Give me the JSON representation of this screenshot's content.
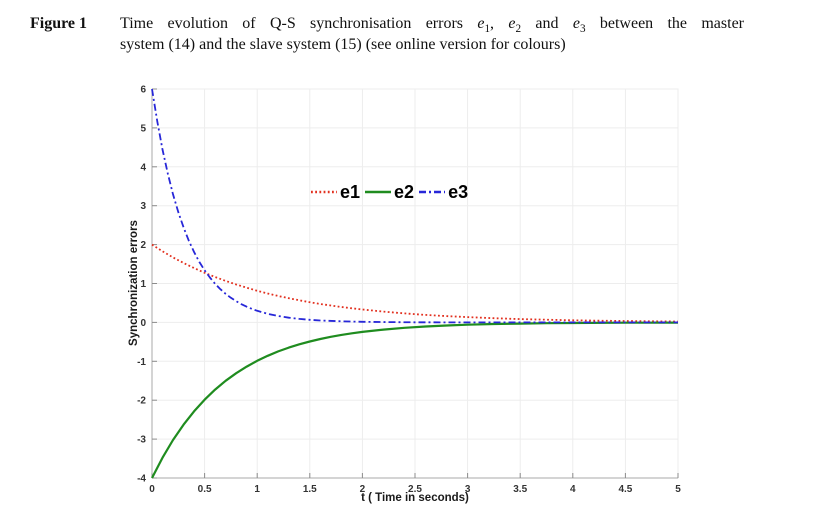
{
  "caption": {
    "label": "Figure 1",
    "line1_pre": "Time evolution of Q-S synchronisation errors",
    "terms": [
      {
        "base": "e",
        "sub": "1"
      },
      {
        "base": "e",
        "sub": "2"
      },
      {
        "base": "e",
        "sub": "3"
      }
    ],
    "sep1": ", ",
    "sep2": " and ",
    "line1_post": "between the master",
    "line2": "system (14) and the slave system (15) (see online version for colours)"
  },
  "figure": {
    "background": "#ffffff",
    "grid_color": "#ededed",
    "spine_color": "#a9a9a9",
    "tick_color": "#8c8c8c",
    "tick_label_color": "#333333"
  },
  "chart_data": {
    "type": "line",
    "title": "",
    "xlabel": "t ( Time in seconds)",
    "ylabel": "Synchronization errors",
    "xlim": [
      0,
      5
    ],
    "ylim": [
      -4,
      6
    ],
    "xticks": [
      0,
      0.5,
      1,
      1.5,
      2,
      2.5,
      3,
      3.5,
      4,
      4.5,
      5
    ],
    "yticks": [
      -4,
      -3,
      -2,
      -1,
      0,
      1,
      2,
      3,
      4,
      5,
      6
    ],
    "grid": true,
    "legend_position": "inside-top-center",
    "series": [
      {
        "name": "e1",
        "color": "#e2301f",
        "style": "dotted",
        "dash": "1.8 2.4",
        "width": 1.8,
        "description": "starts at 2, decays exponentially to 0",
        "points": [
          [
            0,
            2
          ],
          [
            0.1,
            1.828
          ],
          [
            0.2,
            1.671
          ],
          [
            0.3,
            1.527
          ],
          [
            0.4,
            1.396
          ],
          [
            0.5,
            1.276
          ],
          [
            0.6,
            1.166
          ],
          [
            0.7,
            1.066
          ],
          [
            0.8,
            0.975
          ],
          [
            0.9,
            0.891
          ],
          [
            1,
            0.813
          ],
          [
            1.1,
            0.744
          ],
          [
            1.2,
            0.679
          ],
          [
            1.3,
            0.621
          ],
          [
            1.4,
            0.568
          ],
          [
            1.5,
            0.519
          ],
          [
            1.6,
            0.474
          ],
          [
            1.7,
            0.434
          ],
          [
            1.8,
            0.396
          ],
          [
            1.9,
            0.362
          ],
          [
            2,
            0.331
          ],
          [
            2.2,
            0.277
          ],
          [
            2.4,
            0.231
          ],
          [
            2.6,
            0.193
          ],
          [
            2.8,
            0.162
          ],
          [
            3,
            0.135
          ],
          [
            3.25,
            0.107
          ],
          [
            3.5,
            0.086
          ],
          [
            3.75,
            0.069
          ],
          [
            4,
            0.055
          ],
          [
            4.25,
            0.044
          ],
          [
            4.5,
            0.035
          ],
          [
            4.75,
            0.028
          ],
          [
            5,
            0.022
          ]
        ]
      },
      {
        "name": "e2",
        "color": "#1f8c1f",
        "style": "solid",
        "dash": "",
        "width": 2.2,
        "description": "starts at -4, rises exponentially to 0",
        "points": [
          [
            0,
            -4
          ],
          [
            0.1,
            -3.477
          ],
          [
            0.2,
            -3.023
          ],
          [
            0.3,
            -2.628
          ],
          [
            0.4,
            -2.285
          ],
          [
            0.5,
            -1.986
          ],
          [
            0.6,
            -1.727
          ],
          [
            0.7,
            -1.501
          ],
          [
            0.8,
            -1.305
          ],
          [
            0.9,
            -1.135
          ],
          [
            1,
            -0.986
          ],
          [
            1.1,
            -0.858
          ],
          [
            1.2,
            -0.746
          ],
          [
            1.3,
            -0.648
          ],
          [
            1.4,
            -0.564
          ],
          [
            1.5,
            -0.49
          ],
          [
            1.6,
            -0.426
          ],
          [
            1.7,
            -0.37
          ],
          [
            1.8,
            -0.322
          ],
          [
            1.9,
            -0.28
          ],
          [
            2,
            -0.243
          ],
          [
            2.2,
            -0.184
          ],
          [
            2.4,
            -0.139
          ],
          [
            2.6,
            -0.105
          ],
          [
            2.8,
            -0.08
          ],
          [
            3,
            -0.06
          ],
          [
            3.25,
            -0.042
          ],
          [
            3.5,
            -0.03
          ],
          [
            3.75,
            -0.021
          ],
          [
            4,
            -0.015
          ],
          [
            4.5,
            -0.007
          ],
          [
            5,
            -0.004
          ]
        ]
      },
      {
        "name": "e3",
        "color": "#2727d8",
        "style": "dash-dot",
        "dash": "7 3 2 3",
        "width": 1.8,
        "description": "starts at 6, decays fast to 0, crosses e1 near t=0.5",
        "points": [
          [
            0,
            6
          ],
          [
            0.05,
            5.164
          ],
          [
            0.1,
            4.445
          ],
          [
            0.15,
            3.826
          ],
          [
            0.2,
            3.293
          ],
          [
            0.25,
            2.835
          ],
          [
            0.3,
            2.44
          ],
          [
            0.35,
            2.1
          ],
          [
            0.4,
            1.807
          ],
          [
            0.45,
            1.556
          ],
          [
            0.5,
            1.339
          ],
          [
            0.55,
            1.153
          ],
          [
            0.6,
            0.992
          ],
          [
            0.65,
            0.854
          ],
          [
            0.7,
            0.735
          ],
          [
            0.75,
            0.633
          ],
          [
            0.8,
            0.544
          ],
          [
            0.85,
            0.469
          ],
          [
            0.9,
            0.403
          ],
          [
            0.95,
            0.347
          ],
          [
            1,
            0.299
          ],
          [
            1.1,
            0.221
          ],
          [
            1.2,
            0.164
          ],
          [
            1.3,
            0.121
          ],
          [
            1.4,
            0.09
          ],
          [
            1.5,
            0.067
          ],
          [
            1.6,
            0.049
          ],
          [
            1.8,
            0.027
          ],
          [
            2,
            0.015
          ],
          [
            2.25,
            0.007
          ],
          [
            2.5,
            0.003
          ],
          [
            3,
            0.001
          ],
          [
            3.5,
            0
          ],
          [
            4,
            0
          ],
          [
            4.5,
            0
          ],
          [
            5,
            0
          ]
        ]
      }
    ]
  }
}
